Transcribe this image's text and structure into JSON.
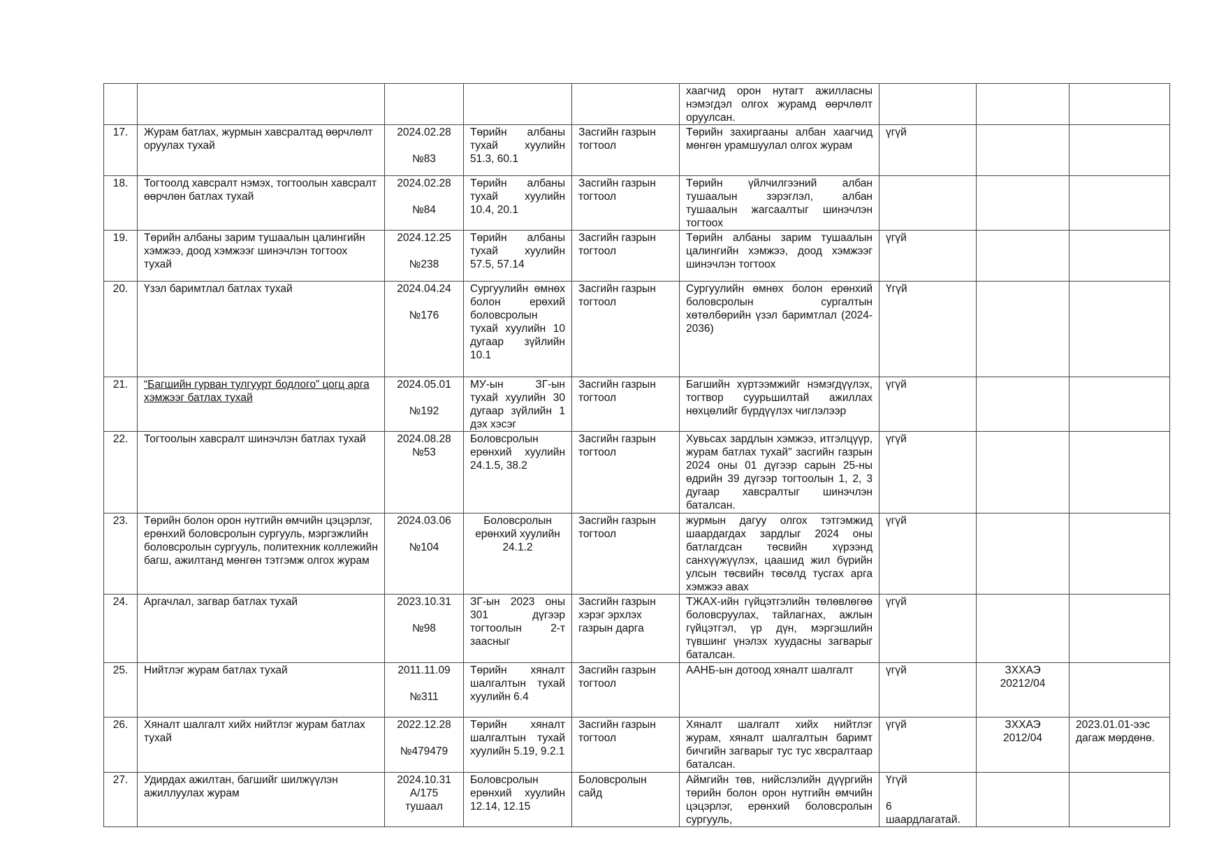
{
  "table": {
    "rows": [
      {
        "no": "",
        "title": "",
        "date": "",
        "basis": "",
        "type": "",
        "content": "хаагчид орон нутагт ажилласны нэмэгдэл олгох журамд өөрчлөлт оруулсан.",
        "change": "",
        "reg": "",
        "note": ""
      },
      {
        "no": "17.",
        "title": "Журам батлах, журмын хавсралтад өөрчлөлт оруулах тухай",
        "date": "2024.02.28\n\n№83",
        "basis": "Төрийн албаны тухай хуулийн 51.3, 60.1",
        "type": "Засгийн газрын тогтоол",
        "content": "Төрийн захиргааны албан хаагчид мөнгөн урамшуулал олгох журам",
        "change": "үгүй",
        "reg": "",
        "note": ""
      },
      {
        "no": "18.",
        "title": "Тогтоолд хавсралт нэмэх, тогтоолын хавсралт өөрчлөн батлах тухай",
        "date": "2024.02.28\n\n№84",
        "basis": "Төрийн албаны тухай хуулийн 10.4, 20.1",
        "type": "Засгийн газрын тогтоол",
        "content": "Төрийн үйлчилгээний албан тушаалын зэрэглэл, албан тушаалын жагсаалтыг шинэчлэн тогтоох",
        "change": "",
        "reg": "",
        "note": ""
      },
      {
        "no": "19.",
        "title": "Төрийн албаны зарим тушаалын цалингийн хэмжээ, доод хэмжээг шинэчлэн тогтоох тухай",
        "date": "2024.12.25\n\n№238",
        "basis": "Төрийн албаны тухай хуулийн 57.5, 57.14",
        "type": "Засгийн газрын тогтоол",
        "content": "Төрийн албаны зарим тушаалын цалингийн хэмжээ, доод хэмжээг шинэчлэн тогтоох",
        "change": "үгүй",
        "reg": "",
        "note": ""
      },
      {
        "no": "20.",
        "title": "Үзэл баримтлал батлах тухай",
        "date": "2024.04.24\n\n№176",
        "basis": "Сургуулийн өмнөх болон ерөхий боловсролын тухай хуулийн 10 дугаар зүйлийн 10.1",
        "type": "Засгийн газрын тогтоол",
        "content": "Сургуулийн өмнөх болон ерөнхий боловсролын сургалтын хөтөлбөрийн үзэл баримтлал (2024-2036)",
        "change": "Үгүй",
        "reg": "",
        "note": ""
      },
      {
        "no": "21.",
        "title": "“Багшийн гурван тулгуурт бодлого” цогц арга хэмжээг батлах тухай ",
        "title_underline": true,
        "date": "2024.05.01\n\n№192",
        "basis": "МУ-ын ЗГ-ын тухай хуулийн 30 дугаар зүйлийн 1 дэх хэсэг",
        "type": "Засгийн газрын тогтоол",
        "content": "Багшийн хүртээмжийг нэмэгдүүлэх, тогтвор суурьшилтай ажиллах нөхцөлийг бүрдүүлэх чиглэлээр",
        "change": "үгүй",
        "reg": "",
        "note": ""
      },
      {
        "no": "22.",
        "title": "Тогтоолын хавсралт шинэчлэн батлах тухай",
        "date": "2024.08.28\n№53",
        "basis": "Боловсролын ерөнхий хуулийн 24.1.5, 38.2",
        "type": "Засгийн газрын тогтоол",
        "content": "Хувьсах зардлын хэмжээ, итгэлцүүр, журам батлах тухай\" засгийн газрын 2024 оны 01 дүгээр сарын 25-ны өдрийн 39 дүгээр тогтоолын 1, 2, 3 дугаар хавсралтыг шинэчлэн баталсан.",
        "change": "үгүй",
        "reg": "",
        "note": ""
      },
      {
        "no": "23.",
        "title": "Төрийн болон орон нутгийн өмчийн цэцэрлэг, ерөнхий боловсролын сургууль, мэргэжлийн боловсролын сургууль, политехник коллежийн багш, ажилтанд мөнгөн тэтгэмж олгох журам",
        "date": "2024.03.06\n\n№104",
        "basis": "Боловсролын ерөнхий хуулийн 24.1.2",
        "basis_center": true,
        "type": "Засгийн газрын тогтоол",
        "content": "журмын дагуу олгох тэтгэмжид шаардагдах зардлыг 2024 оны батлагдсан төсвийн хүрээнд санхүүжүүлэх, цаашид жил бүрийн улсын төсвийн төсөлд тусгах арга хэмжээ авах",
        "change": "үгүй",
        "reg": "",
        "note": ""
      },
      {
        "no": "24.",
        "title": "Аргачлал, загвар батлах тухай",
        "date": "2023.10.31\n\n№98",
        "basis": "ЗГ-ын 2023 оны 301 дүгээр тогтоолын 2-т заасныг",
        "type": "Засгийн газрын хэрэг эрхлэх газрын дарга",
        "content": "ТЖАХ-ийн гүйцэтгэлийн төлөвлөгөө боловсруулах, тайлагнах, ажлын гүйцэтгэл, үр дүн, мэргэшлийн түвшинг үнэлэх хуудасны загварыг баталсан.",
        "change": "үгүй",
        "reg": "",
        "note": ""
      },
      {
        "no": "25.",
        "title": "Нийтлэг журам батлах тухай",
        "date": "2011.11.09\n\n№311",
        "basis": "Төрийн хяналт шалгалтын тухай хуулийн 6.4",
        "type": "Засгийн газрын тогтоол",
        "content": "ААНБ-ын дотоод хяналт шалгалт",
        "change": "үгүй",
        "reg": "ЗХХАЭ\n20212/04",
        "note": ""
      },
      {
        "no": "26.",
        "title": "Хяналт шалгалт хийх нийтлэг журам батлах тухай",
        "date": "2022.12.28\n\n№479479",
        "basis": "Төрийн хяналт шалгалтын тухай хуулийн 5.19, 9.2.1",
        "type": "Засгийн газрын тогтоол",
        "content": "Хяналт шалгалт хийх нийтлэг журам, хяналт шалгалтын баримт бичгийн загварыг тус тус хвсралтаар баталсан.",
        "change": "үгүй",
        "reg": "ЗХХАЭ\n2012/04",
        "note": "2023.01.01-ээс дагаж мөрдөнө."
      },
      {
        "no": "27.",
        "title": "Удирдах ажилтан, багшийг шилжүүлэн ажиллуулах журам",
        "date": "2024.10.31\nА/175\nтушаал",
        "basis": "Боловсролын ерөнхий хуулийн 12.14, 12.15",
        "type": "Боловсролын сайд",
        "content": "Аймгийн төв, нийслэлийн дүүргийн төрийн болон орон нутгийн өмчийн цэцэрлэг, ерөнхий боловсролын сургууль,",
        "change": "Үгүй\n\n6\nшаардлагатай.",
        "reg": "",
        "note": ""
      }
    ]
  }
}
